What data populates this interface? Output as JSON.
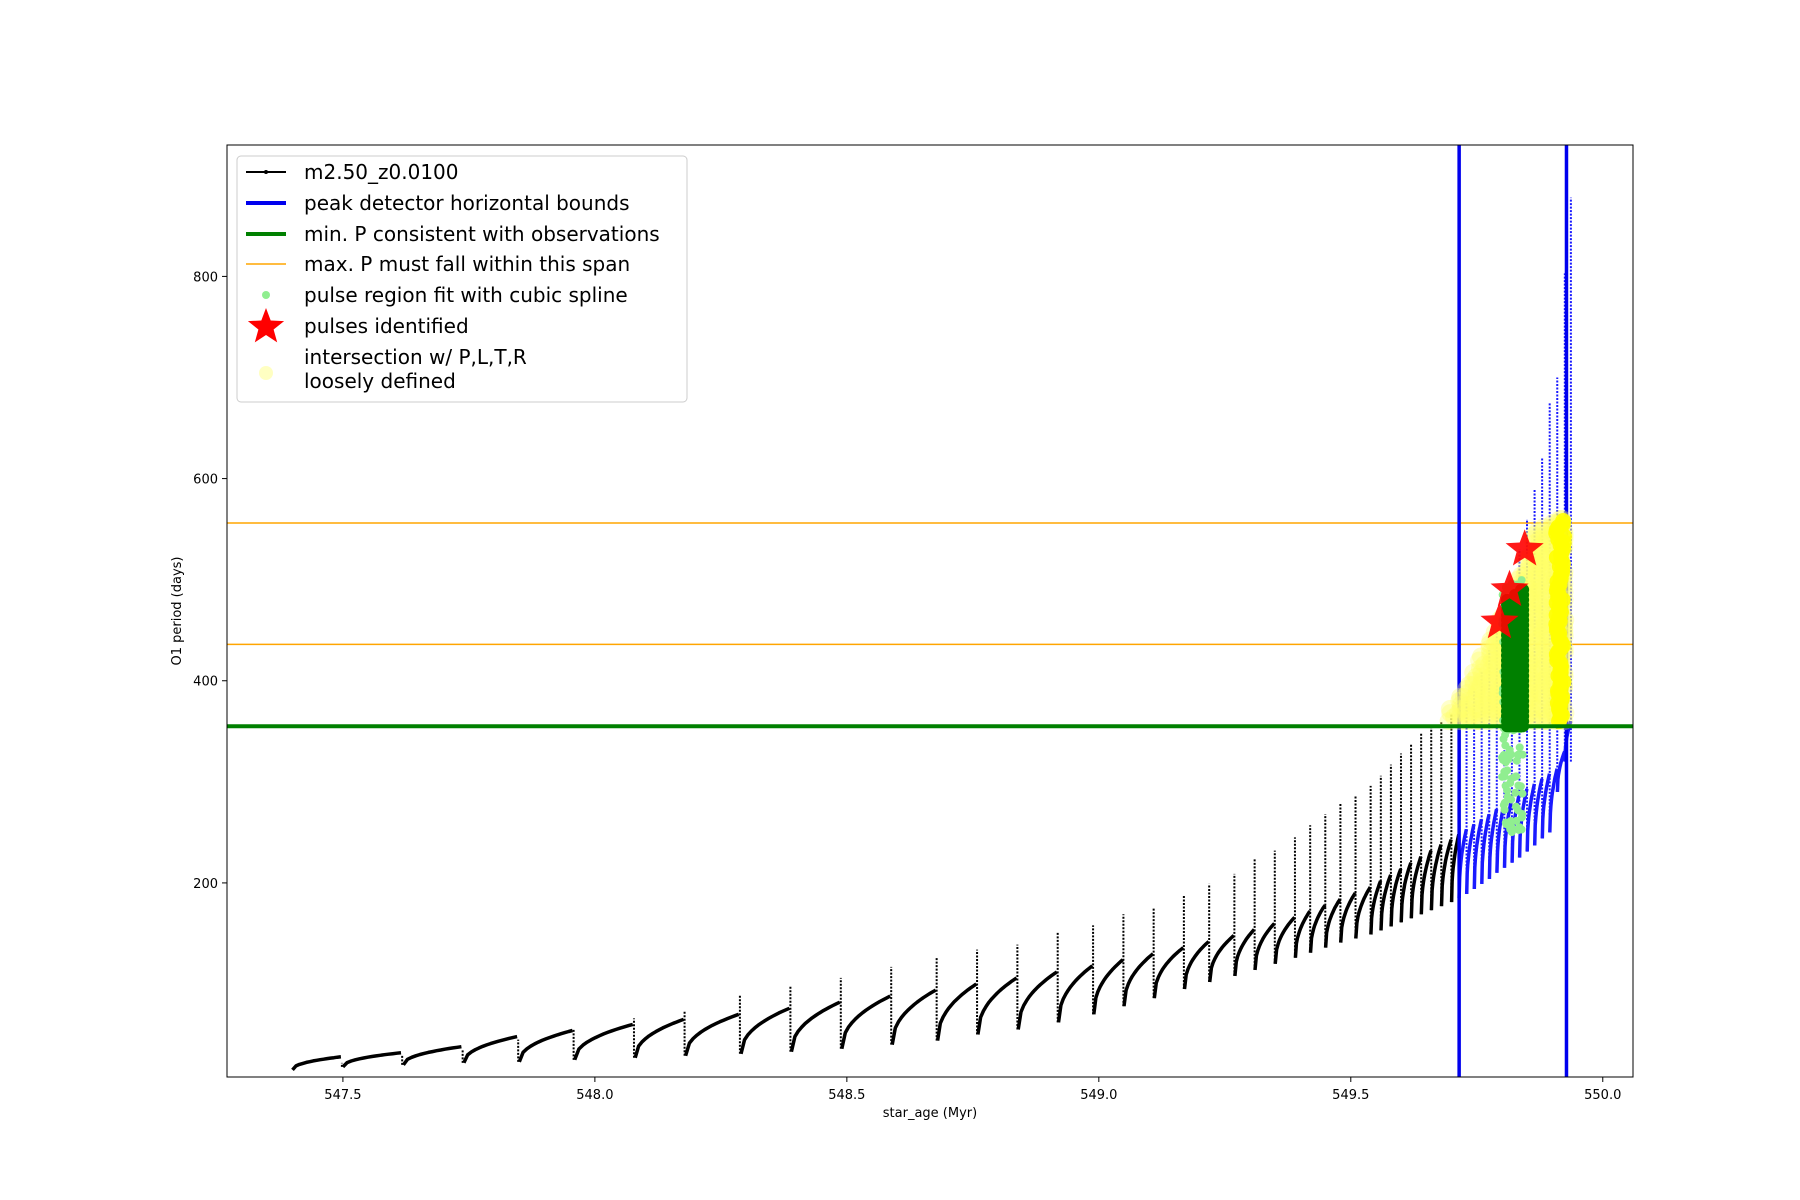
{
  "chart_data": {
    "type": "line",
    "title": "",
    "xlabel": "star_age (Myr)",
    "ylabel": "O1 period (days)",
    "xlim": [
      547.27,
      550.06
    ],
    "ylim": [
      8,
      930
    ],
    "x_ticks": [
      547.5,
      548.0,
      548.5,
      549.0,
      549.5,
      550.0
    ],
    "x_tick_labels": [
      "547.5",
      "548.0",
      "548.5",
      "549.0",
      "549.5",
      "550.0"
    ],
    "y_ticks": [
      200,
      400,
      600,
      800
    ],
    "y_tick_labels": [
      "200",
      "400",
      "600",
      "800"
    ],
    "grid": false,
    "legend_position": "upper left",
    "series": [
      {
        "name": "m2.50_z0.0100",
        "kind": "line-with-dots",
        "color": "#000000",
        "cycle_start_ages": [
          547.4,
          547.5,
          547.62,
          547.74,
          547.85,
          547.96,
          548.08,
          548.18,
          548.29,
          548.39,
          548.49,
          548.59,
          548.68,
          548.76,
          548.84,
          548.92,
          548.99,
          549.05,
          549.11,
          549.17,
          549.22,
          549.27,
          549.31,
          549.35,
          549.39,
          549.42,
          549.45,
          549.48,
          549.51,
          549.54,
          549.56,
          549.58,
          549.6,
          549.62,
          549.64,
          549.66,
          549.68,
          549.7,
          549.715,
          549.73,
          549.745,
          549.76,
          549.775,
          549.79,
          549.805,
          549.82,
          549.835,
          549.85,
          549.865,
          549.88,
          549.895,
          549.91,
          549.925
        ],
        "cycle_min_periods": [
          15,
          18,
          20,
          22,
          23,
          25,
          27,
          29,
          31,
          33,
          36,
          40,
          44,
          50,
          55,
          62,
          70,
          78,
          86,
          95,
          102,
          108,
          114,
          120,
          126,
          131,
          136,
          141,
          145,
          149,
          153,
          157,
          161,
          165,
          169,
          173,
          177,
          181,
          185,
          189,
          194,
          199,
          204,
          210,
          215,
          220,
          225,
          231,
          237,
          244,
          250,
          290,
          320
        ],
        "cycle_max_periods": [
          28,
          32,
          38,
          48,
          54,
          60,
          65,
          70,
          76,
          82,
          88,
          94,
          100,
          106,
          112,
          118,
          124,
          130,
          136,
          142,
          148,
          154,
          160,
          166,
          172,
          178,
          184,
          190,
          196,
          202,
          208,
          214,
          220,
          226,
          232,
          238,
          243,
          248,
          253,
          258,
          263,
          268,
          273,
          278,
          283,
          288,
          293,
          298,
          303,
          308,
          313,
          330,
          360
        ],
        "cycle_spike_periods": [
          22,
          30,
          35,
          45,
          55,
          66,
          74,
          89,
          98,
          106,
          117,
          126,
          134,
          139,
          152,
          158,
          169,
          176,
          188,
          199,
          209,
          224,
          232,
          245,
          257,
          268,
          279,
          286,
          296,
          306,
          317,
          328,
          338,
          349,
          355,
          359,
          368,
          373,
          380,
          390,
          410,
          430,
          450,
          470,
          500,
          530,
          560,
          590,
          620,
          675,
          700,
          803,
          878
        ]
      },
      {
        "name": "peak detector horizontal bounds",
        "kind": "vertical-lines",
        "color": "#0000ee",
        "x": [
          549.715,
          549.928
        ]
      },
      {
        "name": "min. P consistent with observations",
        "kind": "horizontal-line",
        "color": "#008000",
        "y": 355
      },
      {
        "name": "max. P must fall within this span",
        "kind": "horizontal-lines",
        "color": "#ffa500",
        "y": [
          436,
          556
        ]
      },
      {
        "name": "pulse region fit with cubic spline",
        "kind": "scatter",
        "color": "#90ee90",
        "x_range": [
          549.8,
          549.842
        ],
        "y_range": [
          250,
          500
        ]
      },
      {
        "name": "pulses identified",
        "kind": "star-markers",
        "color": "#ff0000",
        "x": [
          549.795,
          549.815,
          549.845
        ],
        "y": [
          458,
          490,
          530
        ]
      },
      {
        "name": "intersection w/ P,L,T,R\nloosely defined",
        "kind": "scatter",
        "color": "#ffff00",
        "x_range": [
          549.7,
          549.93
        ],
        "y_range": [
          355,
          560
        ]
      }
    ]
  },
  "legend": {
    "entries": [
      {
        "key": "m2.50_z0.0100",
        "label": "m2.50_z0.0100"
      },
      {
        "key": "bounds",
        "label": "peak detector horizontal bounds"
      },
      {
        "key": "minp",
        "label": "min. P consistent with observations"
      },
      {
        "key": "maxp",
        "label": "max. P must fall within this span"
      },
      {
        "key": "spline",
        "label": "pulse region fit with cubic spline"
      },
      {
        "key": "pulses",
        "label": "pulses identified"
      },
      {
        "key": "intersect_line1",
        "label": "intersection w/ P,L,T,R"
      },
      {
        "key": "intersect_line2",
        "label": "loosely defined"
      }
    ]
  }
}
